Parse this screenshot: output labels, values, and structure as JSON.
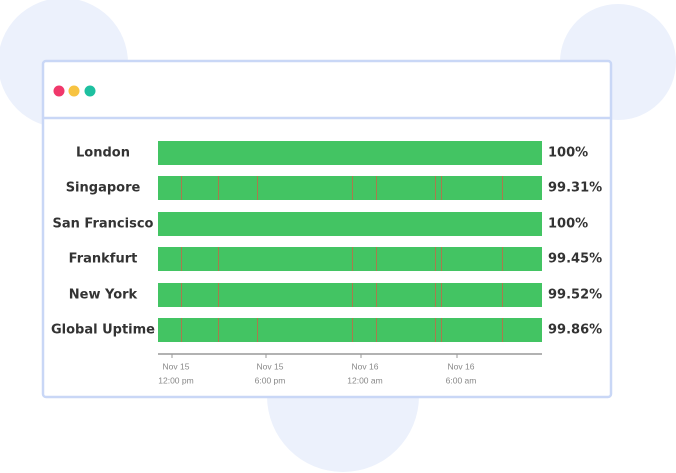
{
  "rows": [
    {
      "name": "London",
      "uptime": "100%"
    },
    {
      "name": "Singapore",
      "uptime": "99.31%"
    },
    {
      "name": "San Francisco",
      "uptime": "100%"
    },
    {
      "name": "Frankfurt",
      "uptime": "99.45%"
    },
    {
      "name": "New York",
      "uptime": "99.52%"
    },
    {
      "name": "Global Uptime",
      "uptime": "99.86%"
    }
  ],
  "axis": {
    "ticks": [
      {
        "date": "Nov 15",
        "time": "12:00 pm"
      },
      {
        "date": "Nov 15",
        "time": "6:00 pm"
      },
      {
        "date": "Nov 16",
        "time": "12:00 am"
      },
      {
        "date": "Nov 16",
        "time": "6:00 am"
      }
    ]
  }
}
